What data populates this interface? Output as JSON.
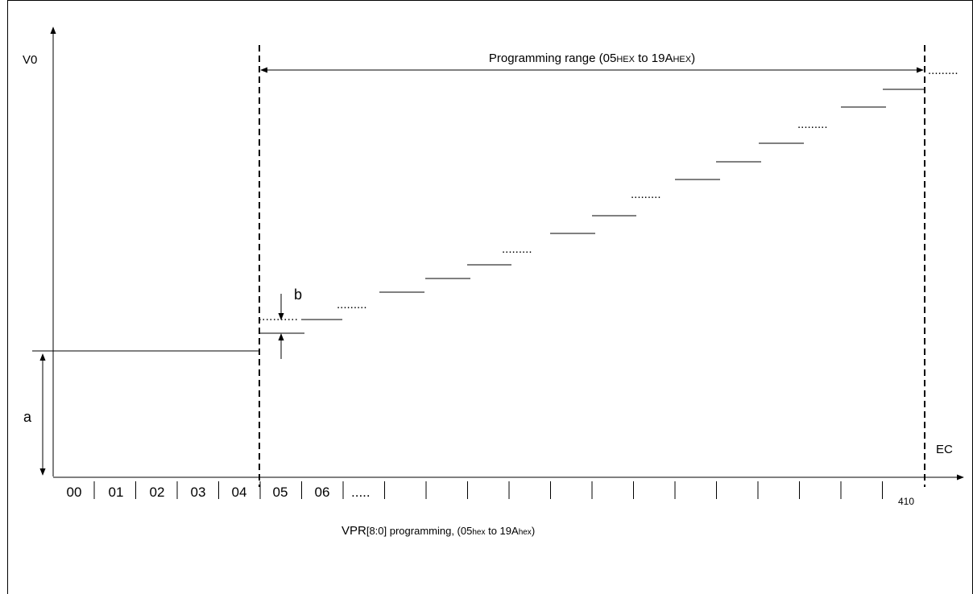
{
  "axes": {
    "y_label": "V0",
    "x_label": "EC"
  },
  "range": {
    "label_main": "Programming range (05",
    "label_hex1": "HEX",
    "label_mid": " to 19A",
    "label_hex2": "HEX",
    "label_end": ")"
  },
  "markers": {
    "a": "a",
    "b": "b"
  },
  "ticks": {
    "labels": [
      "00",
      "01",
      "02",
      "03",
      "04",
      "05",
      "06",
      "....."
    ],
    "last": "410"
  },
  "caption": {
    "part1": "VPR",
    "part2": "[8:0] programming, (05",
    "hex1": "hex",
    "part3": " to 19A",
    "hex2": "hex",
    "part4": ")"
  },
  "dots": "........."
}
